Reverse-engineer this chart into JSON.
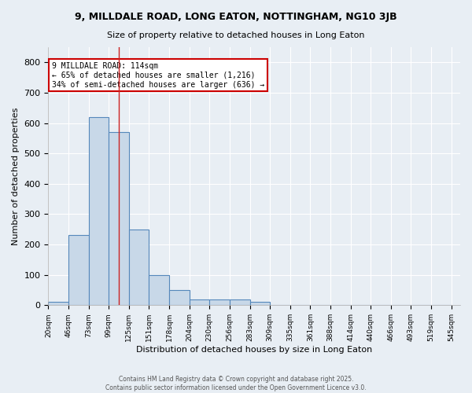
{
  "title1": "9, MILLDALE ROAD, LONG EATON, NOTTINGHAM, NG10 3JB",
  "title2": "Size of property relative to detached houses in Long Eaton",
  "xlabel": "Distribution of detached houses by size in Long Eaton",
  "ylabel": "Number of detached properties",
  "bin_starts": [
    20,
    47,
    74,
    101,
    128,
    155,
    182,
    209,
    236,
    263,
    290,
    317,
    344,
    371,
    398,
    425,
    452,
    479,
    506,
    533
  ],
  "bar_heights": [
    10,
    232,
    619,
    570,
    250,
    100,
    50,
    20,
    20,
    20,
    10,
    0,
    0,
    0,
    0,
    0,
    0,
    0,
    0,
    0
  ],
  "x_tick_labels": [
    "20sqm",
    "46sqm",
    "73sqm",
    "99sqm",
    "125sqm",
    "151sqm",
    "178sqm",
    "204sqm",
    "230sqm",
    "256sqm",
    "283sqm",
    "309sqm",
    "335sqm",
    "361sqm",
    "388sqm",
    "414sqm",
    "440sqm",
    "466sqm",
    "493sqm",
    "519sqm",
    "545sqm"
  ],
  "bar_color": "#c8d8e8",
  "bar_edge_color": "#5588bb",
  "ylim": [
    0,
    850
  ],
  "yticks": [
    0,
    100,
    200,
    300,
    400,
    500,
    600,
    700,
    800
  ],
  "property_size": 114,
  "vline_color": "#cc2222",
  "annotation_text": "9 MILLDALE ROAD: 114sqm\n← 65% of detached houses are smaller (1,216)\n34% of semi-detached houses are larger (636) →",
  "annotation_box_color": "#ffffff",
  "annotation_edge_color": "#cc0000",
  "background_color": "#e8eef4",
  "grid_color": "#ffffff",
  "footer_line1": "Contains HM Land Registry data © Crown copyright and database right 2025.",
  "footer_line2": "Contains public sector information licensed under the Open Government Licence v3.0.",
  "bin_width": 27,
  "xlim_right": 572
}
